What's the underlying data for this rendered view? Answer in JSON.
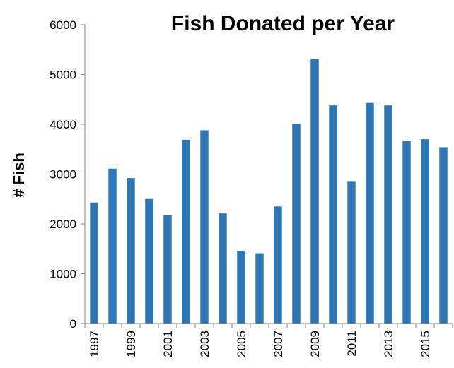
{
  "chart_data": {
    "type": "bar",
    "title": "Fish Donated per Year",
    "xlabel": "",
    "ylabel": "# Fish",
    "ylim": [
      0,
      6000
    ],
    "yticks": [
      0,
      1000,
      2000,
      3000,
      4000,
      5000,
      6000
    ],
    "grid": false,
    "legend": "none",
    "bar_color": "#2E75B6",
    "categories": [
      "1997",
      "1998",
      "1999",
      "2000",
      "2001",
      "2002",
      "2003",
      "2004",
      "2005",
      "2006",
      "2007",
      "2008",
      "2009",
      "2010",
      "2011",
      "2012",
      "2013",
      "2014",
      "2015",
      "2016"
    ],
    "xtick_labels": [
      "1997",
      "",
      "1999",
      "",
      "2001",
      "",
      "2003",
      "",
      "2005",
      "",
      "2007",
      "",
      "2009",
      "",
      "2011",
      "",
      "2013",
      "",
      "2015",
      ""
    ],
    "values": [
      2430,
      3110,
      2920,
      2500,
      2180,
      3690,
      3880,
      2210,
      1460,
      1410,
      2350,
      4010,
      5310,
      4380,
      2860,
      4430,
      4380,
      3670,
      3700,
      3540
    ]
  }
}
